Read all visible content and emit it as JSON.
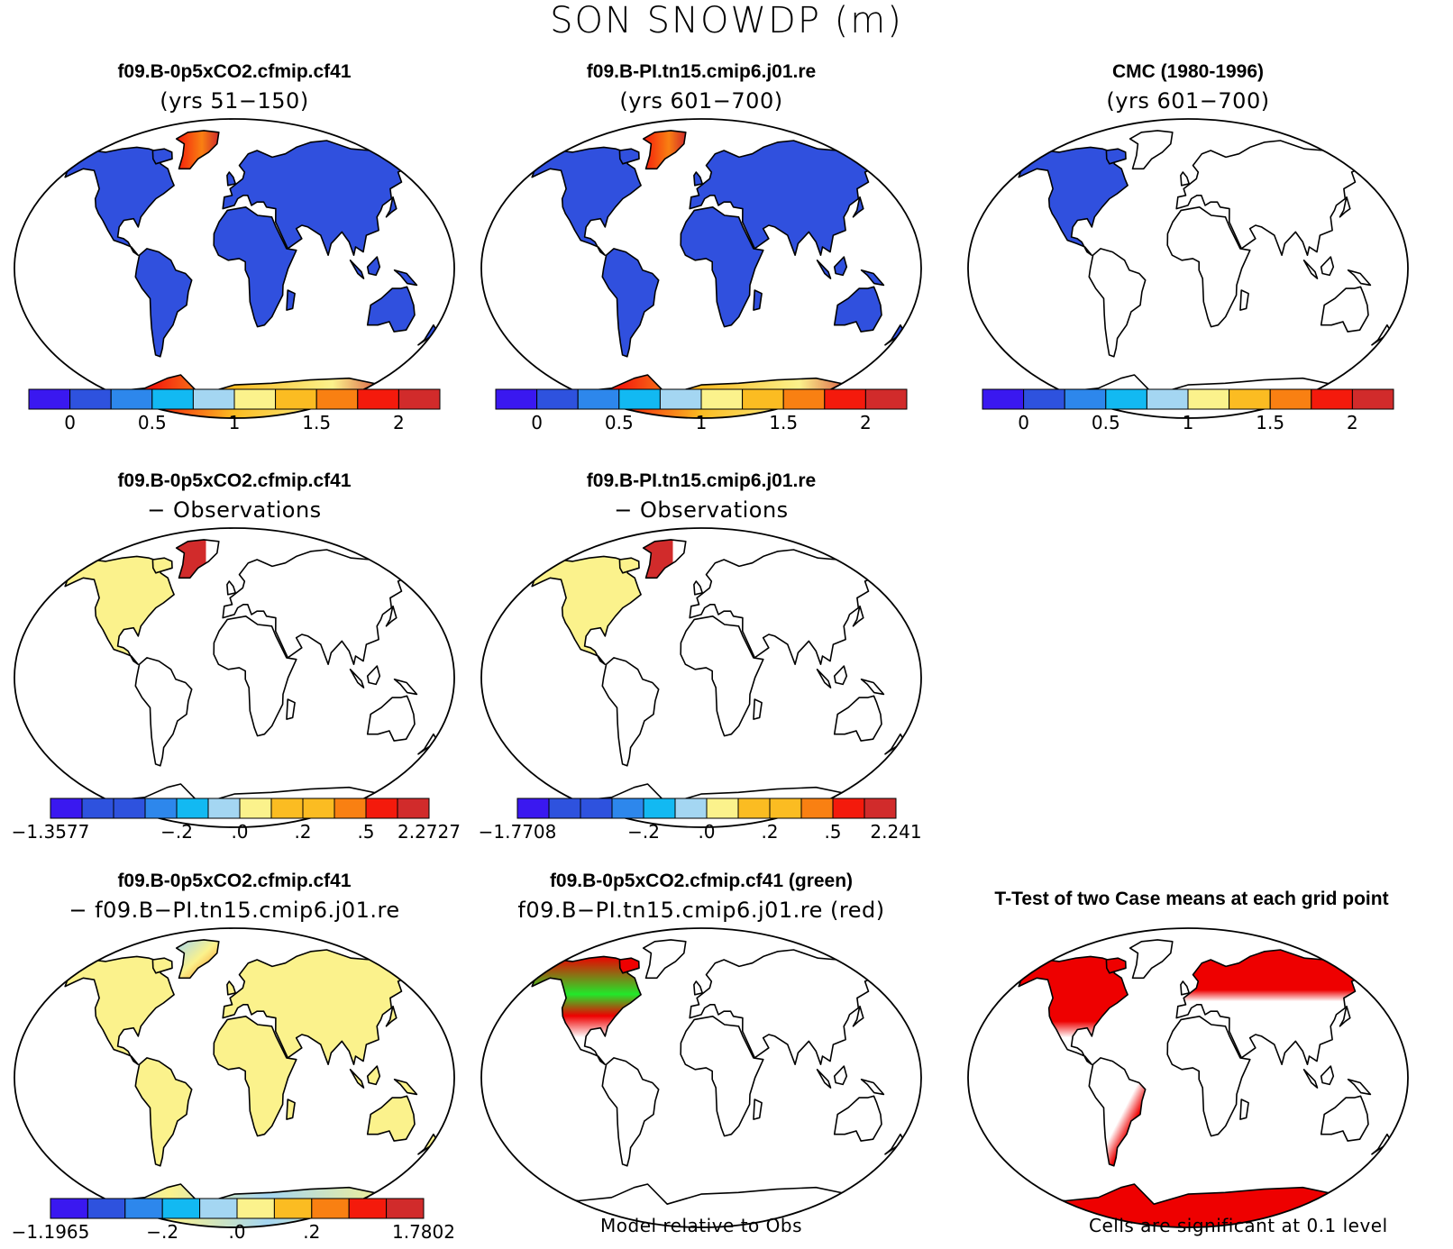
{
  "title": "SON SNOWDP (m)",
  "colors": {
    "palette": [
      "#3a18f0",
      "#2e52de",
      "#2d87ec",
      "#12b9f2",
      "#a4d6f2",
      "#fbf28c",
      "#fbbc22",
      "#f98012",
      "#f41a0c",
      "#d12b2b"
    ],
    "land_blue": "#3050de",
    "land_yellow": "#fbf28c",
    "land_light": "#a4d6f2",
    "sig_red": "#ee0000",
    "sig_green": "#21e82a"
  },
  "panels": [
    {
      "id": "p1",
      "title1": "f09.B-0p5xCO2.cfmip.cf41",
      "title2": "(yrs 51−150)",
      "colorbar": [
        "0",
        "0.5",
        "1",
        "1.5",
        "2"
      ],
      "fill": "model"
    },
    {
      "id": "p2",
      "title1": "f09.B-PI.tn15.cmip6.j01.re",
      "title2": "(yrs 601−700)",
      "colorbar": [
        "0",
        "0.5",
        "1",
        "1.5",
        "2"
      ],
      "fill": "model"
    },
    {
      "id": "p3",
      "title1": "CMC (1980-1996)",
      "title2": "(yrs 601−700)",
      "colorbar": [
        "0",
        "0.5",
        "1",
        "1.5",
        "2"
      ],
      "fill": "obs"
    },
    {
      "id": "p4",
      "title1": "f09.B-0p5xCO2.cfmip.cf41",
      "title2": "− Observations",
      "colorbar": [
        "−1.3577",
        "−.2",
        ".0",
        ".2",
        ".5",
        "2.2727"
      ],
      "fill": "diff_obs"
    },
    {
      "id": "p5",
      "title1": "f09.B-PI.tn15.cmip6.j01.re",
      "title2": "− Observations",
      "colorbar": [
        "−1.7708",
        "−.2",
        ".0",
        ".2",
        ".5",
        "2.241"
      ],
      "fill": "diff_obs"
    },
    {
      "id": "p6",
      "title1": "f09.B-0p5xCO2.cfmip.cf41",
      "title2": "− f09.B−PI.tn15.cmip6.j01.re",
      "colorbar": [
        "−1.1965",
        "−.2",
        ".0",
        ".2",
        "1.7802"
      ],
      "fill": "diff_case"
    },
    {
      "id": "p7",
      "title1": "f09.B-0p5xCO2.cfmip.cf41 (green)",
      "title2": "f09.B−PI.tn15.cmip6.j01.re (red)",
      "fill": "relative"
    },
    {
      "id": "p8",
      "title1": "T-Test of two Case means at each grid point",
      "title2": "",
      "fill": "ttest"
    }
  ],
  "notes": {
    "relative": "Model relative to Obs",
    "ttest": "Cells are significant at 0.1 level"
  },
  "chart_data": {
    "type": "heatmap",
    "title": "SON SNOWDP (m)",
    "maps": [
      {
        "title": "f09.B-0p5xCO2.cfmip.cf41 (yrs 51−150)",
        "colorbar_ticks": [
          0,
          0.5,
          1,
          1.5,
          2
        ],
        "levels": 10
      },
      {
        "title": "f09.B-PI.tn15.cmip6.j01.re (yrs 601−700)",
        "colorbar_ticks": [
          0,
          0.5,
          1,
          1.5,
          2
        ],
        "levels": 10
      },
      {
        "title": "CMC (1980-1996) (yrs 601−700)",
        "colorbar_ticks": [
          0,
          0.5,
          1,
          1.5,
          2
        ],
        "levels": 10
      },
      {
        "title": "f09.B-0p5xCO2.cfmip.cf41 − Observations",
        "colorbar_ticks": [
          -1.3577,
          -0.2,
          0.0,
          0.2,
          0.5,
          2.2727
        ],
        "levels": 12
      },
      {
        "title": "f09.B-PI.tn15.cmip6.j01.re − Observations",
        "colorbar_ticks": [
          -1.7708,
          -0.2,
          0.0,
          0.2,
          0.5,
          2.241
        ],
        "levels": 12
      },
      {
        "title": "f09.B-0p5xCO2.cfmip.cf41 − f09.B−PI.tn15.cmip6.j01.re",
        "colorbar_ticks": [
          -1.1965,
          -0.2,
          0.0,
          0.2,
          1.7802
        ],
        "levels": 10
      },
      {
        "title": "f09.B-0p5xCO2.cfmip.cf41 (green) f09.B−PI.tn15.cmip6.j01.re (red)",
        "note": "Model relative to Obs"
      },
      {
        "title": "T-Test of two Case means at each grid point",
        "note": "Cells are significant at 0.1 level"
      }
    ]
  }
}
